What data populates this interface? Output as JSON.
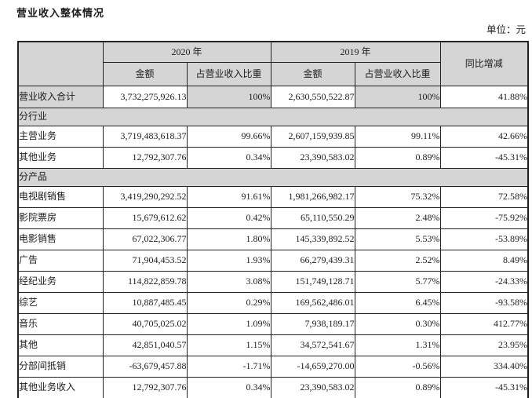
{
  "page": {
    "title": "营业收入整体情况",
    "unit_label": "单位：元"
  },
  "table": {
    "header": {
      "year_2020": "2020 年",
      "year_2019": "2019 年",
      "yoy": "同比增减",
      "amount": "金额",
      "pct": "占营业收入比重"
    },
    "rows": [
      {
        "type": "data",
        "highlight": true,
        "label": "营业收入合计",
        "values": [
          "3,732,275,926.13",
          "100%",
          "2,630,550,522.87",
          "100%",
          "41.88%"
        ]
      },
      {
        "type": "section",
        "label": "分行业"
      },
      {
        "type": "data",
        "label": "主营业务",
        "values": [
          "3,719,483,618.37",
          "99.66%",
          "2,607,159,939.85",
          "99.11%",
          "42.66%"
        ]
      },
      {
        "type": "data",
        "label": "其他业务",
        "values": [
          "12,792,307.76",
          "0.34%",
          "23,390,583.02",
          "0.89%",
          "-45.31%"
        ]
      },
      {
        "type": "section",
        "label": "分产品"
      },
      {
        "type": "data",
        "label": "电视剧销售",
        "values": [
          "3,419,290,292.52",
          "91.61%",
          "1,981,266,982.17",
          "75.32%",
          "72.58%"
        ]
      },
      {
        "type": "data",
        "label": "影院票房",
        "values": [
          "15,679,612.62",
          "0.42%",
          "65,110,550.29",
          "2.48%",
          "-75.92%"
        ]
      },
      {
        "type": "data",
        "label": "电影销售",
        "values": [
          "67,022,306.77",
          "1.80%",
          "145,339,892.52",
          "5.53%",
          "-53.89%"
        ]
      },
      {
        "type": "data",
        "label": "广告",
        "values": [
          "71,904,453.52",
          "1.93%",
          "66,279,439.31",
          "2.52%",
          "8.49%"
        ]
      },
      {
        "type": "data",
        "label": "经纪业务",
        "values": [
          "114,822,859.78",
          "3.08%",
          "151,749,128.71",
          "5.77%",
          "-24.33%"
        ]
      },
      {
        "type": "data",
        "label": "综艺",
        "values": [
          "10,887,485.45",
          "0.29%",
          "169,562,486.01",
          "6.45%",
          "-93.58%"
        ]
      },
      {
        "type": "data",
        "label": "音乐",
        "values": [
          "40,705,025.02",
          "1.09%",
          "7,938,189.17",
          "0.30%",
          "412.77%"
        ]
      },
      {
        "type": "data",
        "label": "其他",
        "values": [
          "42,851,040.57",
          "1.15%",
          "34,572,541.67",
          "1.31%",
          "23.95%"
        ]
      },
      {
        "type": "data",
        "label": "分部间抵销",
        "values": [
          "-63,679,457.88",
          "-1.71%",
          "-14,659,270.00",
          "-0.56%",
          "334.40%"
        ]
      },
      {
        "type": "data",
        "label": "其他业务收入",
        "values": [
          "12,792,307.76",
          "0.34%",
          "23,390,583.02",
          "0.89%",
          "-45.31%"
        ]
      }
    ],
    "colors": {
      "shaded_cell": "#d5d5d5",
      "border": "#222222",
      "background": "#ffffff"
    }
  }
}
